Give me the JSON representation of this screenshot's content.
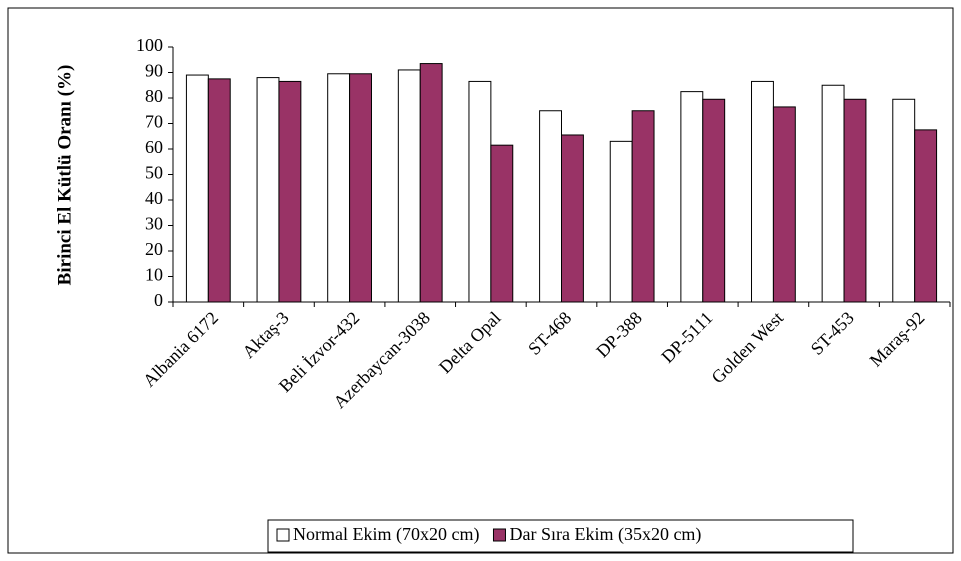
{
  "chart_data": {
    "type": "bar",
    "y_label": "Birinci El Kütlü Oranı (%)",
    "categories": [
      "Albania 6172",
      "Aktaş-3",
      "Beli İzvor-432",
      "Azerbaycan-3038",
      "Delta Opal",
      "ST-468",
      "DP-388",
      "DP-5111",
      "Golden West",
      "ST-453",
      "Maraş-92"
    ],
    "series": [
      {
        "name": "Normal Ekim (70x20 cm)",
        "color": "#ffffff",
        "values": [
          89,
          88,
          89.5,
          91,
          86.5,
          75,
          63,
          82.5,
          86.5,
          85,
          79.5
        ]
      },
      {
        "name": "Dar Sıra Ekim  (35x20 cm)",
        "color": "#993366",
        "values": [
          87.5,
          86.5,
          89.5,
          93.5,
          61.5,
          65.5,
          75,
          79.5,
          76.5,
          79.5,
          67.5
        ]
      }
    ],
    "ylim": [
      0,
      100
    ],
    "yticks": [
      0,
      10,
      20,
      30,
      40,
      50,
      60,
      70,
      80,
      90,
      100
    ],
    "legend": "bottom"
  }
}
